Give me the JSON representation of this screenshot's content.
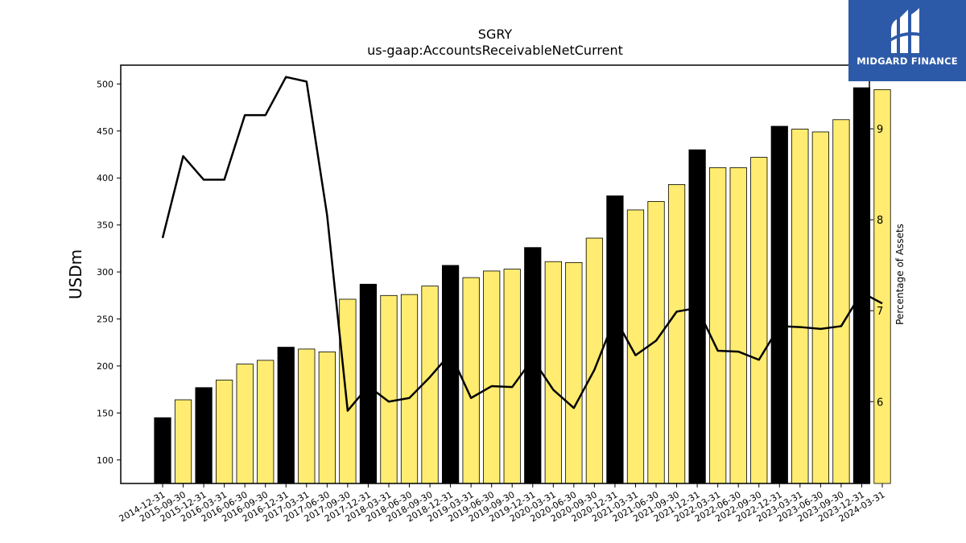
{
  "chart_data": {
    "type": "bar",
    "title": "SGRY",
    "subtitle": "us-gaap:AccountsReceivableNetCurrent",
    "ylabel": "USDm",
    "y2label": "Percentage of Assets",
    "ylim": [
      75,
      520
    ],
    "y2lim": [
      5.1,
      9.7
    ],
    "yticks": [
      100,
      150,
      200,
      250,
      300,
      350,
      400,
      450,
      500
    ],
    "y2ticks": [
      6,
      7,
      8,
      9
    ],
    "categories": [
      "2014-12-31",
      "2015-09-30",
      "2015-12-31",
      "2016-03-31",
      "2016-06-30",
      "2016-09-30",
      "2016-12-31",
      "2017-03-31",
      "2017-06-30",
      "2017-09-30",
      "2017-12-31",
      "2018-03-31",
      "2018-06-30",
      "2018-09-30",
      "2018-12-31",
      "2019-03-31",
      "2019-06-30",
      "2019-09-30",
      "2019-12-31",
      "2020-03-31",
      "2020-06-30",
      "2020-09-30",
      "2020-12-31",
      "2021-03-31",
      "2021-06-30",
      "2021-09-30",
      "2021-12-31",
      "2022-03-31",
      "2022-06-30",
      "2022-09-30",
      "2022-12-31",
      "2023-03-31",
      "2023-06-30",
      "2023-09-30",
      "2023-12-31",
      "2024-03-31"
    ],
    "series": [
      {
        "type": "bar",
        "values": [
          145,
          164,
          177,
          185,
          202,
          206,
          220,
          218,
          215,
          271,
          287,
          275,
          276,
          285,
          307,
          294,
          301,
          303,
          326,
          311,
          310,
          336,
          381,
          366,
          375,
          393,
          430,
          411,
          411,
          422,
          455,
          452,
          449,
          462,
          496,
          494
        ],
        "highlight": [
          true,
          false,
          true,
          false,
          false,
          false,
          true,
          false,
          false,
          false,
          true,
          false,
          false,
          false,
          true,
          false,
          false,
          false,
          true,
          false,
          false,
          false,
          true,
          false,
          false,
          false,
          true,
          false,
          false,
          false,
          true,
          false,
          false,
          false,
          true,
          false
        ]
      },
      {
        "type": "line",
        "axis": "right",
        "values": [
          7.8,
          8.7,
          8.44,
          8.44,
          9.15,
          9.15,
          9.57,
          9.52,
          8.05,
          5.9,
          6.17,
          6.0,
          6.04,
          6.27,
          6.53,
          6.04,
          6.17,
          6.16,
          6.47,
          6.13,
          5.93,
          6.35,
          6.92,
          6.51,
          6.67,
          6.99,
          7.03,
          6.56,
          6.55,
          6.46,
          6.83,
          6.82,
          6.8,
          6.83,
          7.2,
          7.08
        ]
      }
    ],
    "colors": {
      "bar": "#ffec70",
      "bar_highlight": "#000000",
      "line": "#000000",
      "edge": "#000000"
    },
    "grid": false,
    "legend": "none"
  },
  "logo": {
    "text": "MIDGARD FINANCE",
    "icon": "midgard-logo-icon"
  }
}
